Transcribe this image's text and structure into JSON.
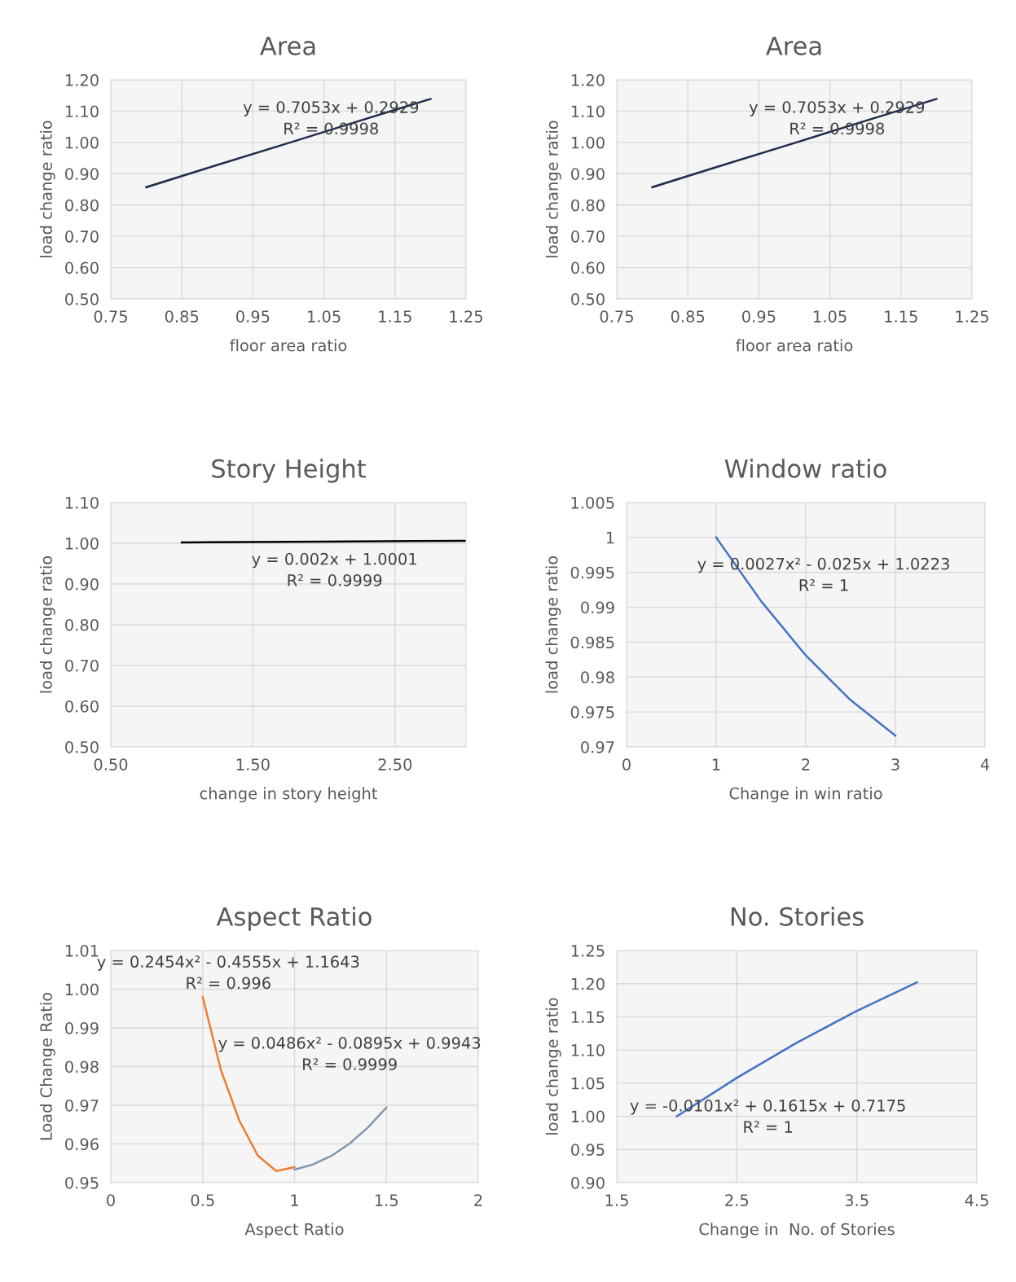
{
  "chart_data": [
    {
      "type": "line",
      "title": "Area",
      "xlabel": "floor area ratio",
      "ylabel": "load change ratio",
      "x": [
        0.8,
        0.9,
        1.0,
        1.1,
        1.2
      ],
      "series": [
        {
          "color": "#1f2d4d",
          "values": [
            0.857,
            0.928,
            0.998,
            1.069,
            1.139
          ]
        }
      ],
      "xlim": [
        0.75,
        1.25
      ],
      "xticks": [
        {
          "value": 0.75,
          "label": "0.75"
        },
        {
          "value": 0.85,
          "label": "0.85"
        },
        {
          "value": 0.95,
          "label": "0.95"
        },
        {
          "value": 1.05,
          "label": "1.05"
        },
        {
          "value": 1.15,
          "label": "1.15"
        },
        {
          "value": 1.25,
          "label": "1.25"
        }
      ],
      "ylim": [
        0.5,
        1.2
      ],
      "yticks": [
        {
          "value": 0.5,
          "label": "0.50"
        },
        {
          "value": 0.6,
          "label": "0.60"
        },
        {
          "value": 0.7,
          "label": "0.70"
        },
        {
          "value": 0.8,
          "label": "0.80"
        },
        {
          "value": 0.9,
          "label": "0.90"
        },
        {
          "value": 1.0,
          "label": "1.00"
        },
        {
          "value": 1.1,
          "label": "1.10"
        },
        {
          "value": 1.2,
          "label": "1.20"
        }
      ],
      "grid": true,
      "annotations": [
        "y = 0.7053x + 0.2929\nR² = 0.9998"
      ]
    },
    {
      "type": "line",
      "title": "Area",
      "xlabel": "floor area ratio",
      "ylabel": "load change ratio",
      "x": [
        0.8,
        0.9,
        1.0,
        1.1,
        1.2
      ],
      "series": [
        {
          "color": "#1f2d4d",
          "values": [
            0.857,
            0.928,
            0.998,
            1.069,
            1.139
          ]
        }
      ],
      "xlim": [
        0.75,
        1.25
      ],
      "xticks": [
        {
          "value": 0.75,
          "label": "0.75"
        },
        {
          "value": 0.85,
          "label": "0.85"
        },
        {
          "value": 0.95,
          "label": "0.95"
        },
        {
          "value": 1.05,
          "label": "1.05"
        },
        {
          "value": 1.15,
          "label": "1.15"
        },
        {
          "value": 1.25,
          "label": "1.25"
        }
      ],
      "ylim": [
        0.5,
        1.2
      ],
      "yticks": [
        {
          "value": 0.5,
          "label": "0.50"
        },
        {
          "value": 0.6,
          "label": "0.60"
        },
        {
          "value": 0.7,
          "label": "0.70"
        },
        {
          "value": 0.8,
          "label": "0.80"
        },
        {
          "value": 0.9,
          "label": "0.90"
        },
        {
          "value": 1.0,
          "label": "1.00"
        },
        {
          "value": 1.1,
          "label": "1.10"
        },
        {
          "value": 1.2,
          "label": "1.20"
        }
      ],
      "grid": true,
      "annotations": [
        "y = 0.7053x + 0.2929\nR² = 0.9998"
      ]
    },
    {
      "type": "line",
      "title": "Story Height",
      "xlabel": "change in story height",
      "ylabel": "load change ratio",
      "x": [
        1.0,
        2.0,
        3.0
      ],
      "series": [
        {
          "color": "#000000",
          "values": [
            1.002,
            1.004,
            1.006
          ]
        }
      ],
      "xlim": [
        0.5,
        3.0
      ],
      "xticks": [
        {
          "value": 0.5,
          "label": "0.50"
        },
        {
          "value": 1.5,
          "label": "1.50"
        },
        {
          "value": 2.5,
          "label": "2.50"
        }
      ],
      "ylim": [
        0.5,
        1.1
      ],
      "yticks": [
        {
          "value": 0.5,
          "label": "0.50"
        },
        {
          "value": 0.6,
          "label": "0.60"
        },
        {
          "value": 0.7,
          "label": "0.70"
        },
        {
          "value": 0.8,
          "label": "0.80"
        },
        {
          "value": 0.9,
          "label": "0.90"
        },
        {
          "value": 1.0,
          "label": "1.00"
        },
        {
          "value": 1.1,
          "label": "1.10"
        }
      ],
      "grid": true,
      "annotations": [
        "y = 0.002x + 1.0001\nR² = 0.9999"
      ]
    },
    {
      "type": "line",
      "title": "Window ratio",
      "xlabel": "Change in win ratio",
      "ylabel": "load change ratio",
      "x": [
        1.0,
        1.5,
        2.0,
        2.5,
        3.0
      ],
      "series": [
        {
          "color": "#4472c4",
          "values": [
            1.0,
            0.9909,
            0.9831,
            0.9767,
            0.9716
          ]
        }
      ],
      "xlim": [
        0,
        4
      ],
      "xticks": [
        0,
        1,
        2,
        3,
        4
      ],
      "ylim": [
        0.97,
        1.005
      ],
      "yticks": [
        0.97,
        0.975,
        0.98,
        0.985,
        0.99,
        0.995,
        1,
        1.005
      ],
      "grid": true,
      "annotations": [
        "y = 0.0027x² - 0.025x + 1.0223\nR² = 1"
      ]
    },
    {
      "type": "line",
      "title": "Aspect Ratio",
      "xlabel": "Aspect Ratio",
      "ylabel": "Load Change Ratio",
      "series": [
        {
          "color": "#ed7d31",
          "x": [
            0.5,
            0.6,
            0.7,
            0.8,
            0.9,
            1.0
          ],
          "values": [
            0.998,
            0.979,
            0.966,
            0.957,
            0.953,
            0.954
          ]
        },
        {
          "color": "#8497b0",
          "x": [
            1.0,
            1.1,
            1.2,
            1.3,
            1.4,
            1.5
          ],
          "values": [
            0.9534,
            0.9547,
            0.9569,
            0.9601,
            0.9643,
            0.9694
          ]
        }
      ],
      "xlim": [
        0,
        2
      ],
      "xticks": [
        0,
        0.5,
        1,
        1.5,
        2
      ],
      "ylim": [
        0.95,
        1.01
      ],
      "yticks": [
        {
          "value": 0.95,
          "label": "0.95"
        },
        {
          "value": 0.96,
          "label": "0.96"
        },
        {
          "value": 0.97,
          "label": "0.97"
        },
        {
          "value": 0.98,
          "label": "0.98"
        },
        {
          "value": 0.99,
          "label": "0.99"
        },
        {
          "value": 1.0,
          "label": "1.00"
        },
        {
          "value": 1.01,
          "label": "1.01"
        }
      ],
      "grid": true,
      "annotations": [
        "y = 0.2454x² - 0.4555x + 1.1643\nR² = 0.996",
        "y = 0.0486x² - 0.0895x + 0.9943\nR² = 0.9999"
      ]
    },
    {
      "type": "line",
      "title": "No. Stories",
      "xlabel": "Change in  No. of Stories",
      "ylabel": "load change ratio",
      "x": [
        2.0,
        2.5,
        3.0,
        3.5,
        4.0
      ],
      "series": [
        {
          "color": "#4472c4",
          "values": [
            1.0,
            1.058,
            1.111,
            1.159,
            1.202
          ]
        }
      ],
      "xlim": [
        1.5,
        4.5
      ],
      "xticks": [
        1.5,
        2.5,
        3.5,
        4.5
      ],
      "ylim": [
        0.9,
        1.25
      ],
      "yticks": [
        {
          "value": 0.9,
          "label": "0.90"
        },
        {
          "value": 0.95,
          "label": "0.95"
        },
        {
          "value": 1.0,
          "label": "1.00"
        },
        {
          "value": 1.05,
          "label": "1.05"
        },
        {
          "value": 1.1,
          "label": "1.10"
        },
        {
          "value": 1.15,
          "label": "1.15"
        },
        {
          "value": 1.2,
          "label": "1.20"
        },
        {
          "value": 1.25,
          "label": "1.25"
        }
      ],
      "grid": true,
      "annotations": [
        "y = -0.0101x² + 0.1615x + 0.7175\nR² = 1"
      ]
    }
  ]
}
